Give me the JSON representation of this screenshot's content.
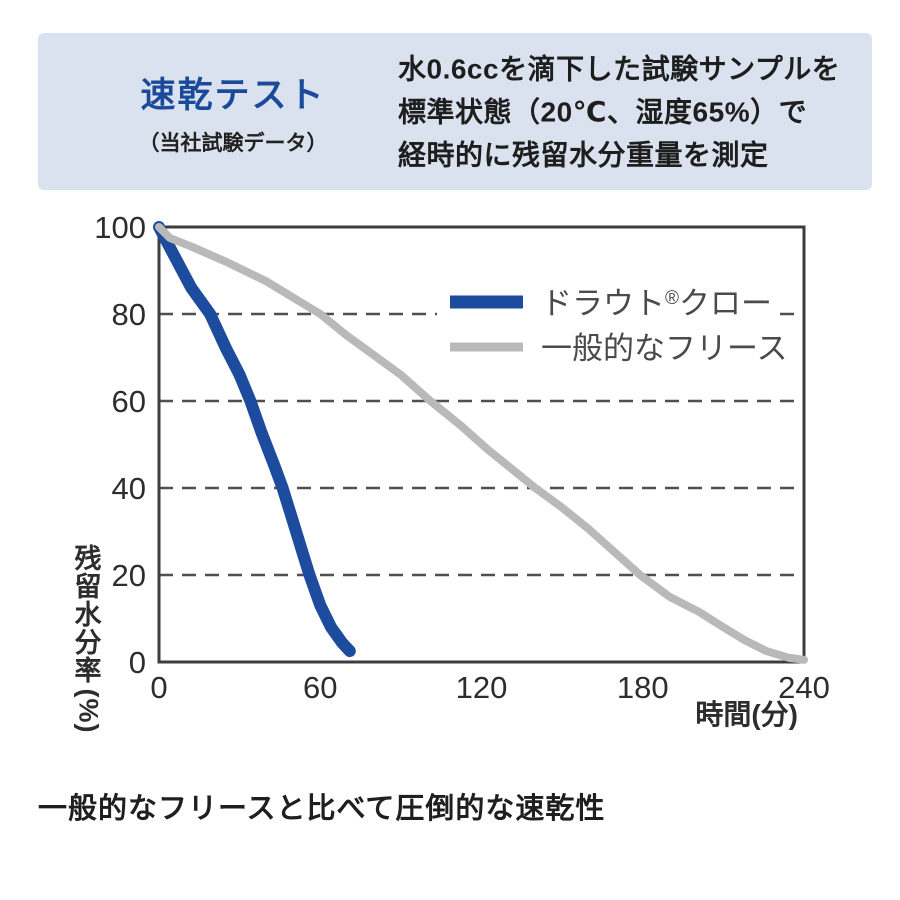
{
  "header": {
    "title": "速乾テスト",
    "subtitle": "（当社試験データ）",
    "description_lines": [
      "水0.6ccを滴下した試験サンプルを",
      "標準状態（20℃、湿度65%）で",
      "経時的に残留水分重量を測定"
    ],
    "bg_color": "#dbe2ef",
    "title_color": "#1b4a9b"
  },
  "caption": {
    "text": "一般的なフリースと比べて圧倒的な速乾性"
  },
  "chart_data": {
    "type": "line",
    "title": "",
    "xlabel": "時間(分)",
    "ylabel": "残留水分率(%)",
    "ylabel_chars": [
      "残",
      "留",
      "水",
      "分",
      "率"
    ],
    "ylabel_unit": "(%)",
    "xlim": [
      0,
      240
    ],
    "ylim": [
      0,
      100
    ],
    "xticks": [
      0,
      60,
      120,
      180,
      240
    ],
    "yticks": [
      0,
      20,
      40,
      60,
      80,
      100
    ],
    "grid": "horizontal dashed lines at 20/40/60/80",
    "legend_position": "inside top-right",
    "series": [
      {
        "name": "ドラウト®クロー",
        "color": "#1d4b9e",
        "stroke_width": 12,
        "legend_swatch_width": 13,
        "points": [
          [
            0,
            100
          ],
          [
            6,
            93
          ],
          [
            12,
            86
          ],
          [
            19,
            80
          ],
          [
            25,
            72
          ],
          [
            30,
            66
          ],
          [
            34,
            60
          ],
          [
            38,
            53
          ],
          [
            43,
            45
          ],
          [
            46,
            40
          ],
          [
            50,
            32
          ],
          [
            53,
            26
          ],
          [
            56,
            20
          ],
          [
            60,
            13
          ],
          [
            64,
            8
          ],
          [
            68,
            4.5
          ],
          [
            71,
            2.5
          ]
        ]
      },
      {
        "name": "一般的なフリース",
        "color": "#b9b9ba",
        "stroke_width": 8,
        "legend_swatch_width": 9,
        "points": [
          [
            0,
            100
          ],
          [
            4,
            97.5
          ],
          [
            12,
            95.5
          ],
          [
            25,
            92
          ],
          [
            40,
            87.5
          ],
          [
            52,
            83
          ],
          [
            60,
            80
          ],
          [
            70,
            75
          ],
          [
            80,
            70.5
          ],
          [
            90,
            66
          ],
          [
            101,
            60
          ],
          [
            112,
            54.5
          ],
          [
            122,
            49
          ],
          [
            131,
            44.5
          ],
          [
            140,
            40
          ],
          [
            150,
            35.5
          ],
          [
            160,
            30.5
          ],
          [
            170,
            25
          ],
          [
            179,
            20
          ],
          [
            190,
            15
          ],
          [
            201,
            11.5
          ],
          [
            210,
            8
          ],
          [
            218,
            5
          ],
          [
            226,
            2.5
          ],
          [
            234,
            1
          ],
          [
            240,
            0.5
          ]
        ]
      }
    ]
  }
}
